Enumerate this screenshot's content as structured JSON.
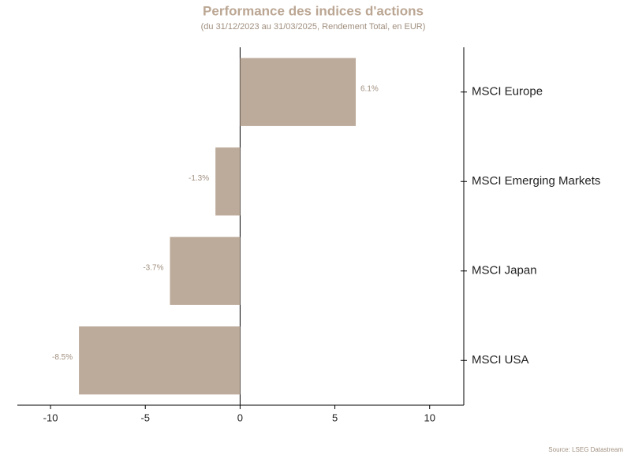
{
  "chart_data": {
    "type": "hbar",
    "title": "Performance des indices d'actions",
    "subtitle": "(du 31/12/2023 au 31/03/2025, Rendement Total, en EUR)",
    "source": "Source: LSEG Datastream",
    "categories": [
      "MSCI Europe",
      "MSCI Emerging Markets",
      "MSCI Japan",
      "MSCI USA"
    ],
    "values": [
      6.1,
      -1.3,
      -3.7,
      -8.5
    ],
    "value_labels": [
      "6.1%",
      "-1.3%",
      "-3.7%",
      "-8.5%"
    ],
    "color": "#bcab9a",
    "xlim": [
      -11.75,
      11.8
    ],
    "xticks": [
      -10,
      -5,
      0,
      5,
      10
    ]
  }
}
